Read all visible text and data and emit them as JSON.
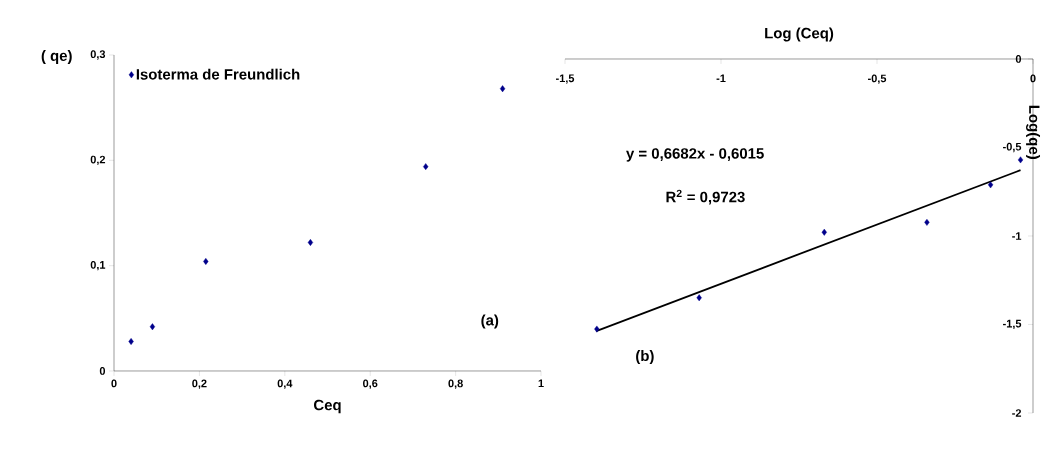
{
  "chart_data": [
    {
      "type": "scatter",
      "xlabel": "Ceq",
      "ylabel": "( qe)",
      "marker": "diamond",
      "legend": "top left",
      "xlim": [
        0,
        1
      ],
      "xticks": [
        0,
        {
          "value": 0.2,
          "label": "0,2"
        },
        {
          "value": 0.4,
          "label": "0,4"
        },
        {
          "value": 0.6,
          "label": "0,6"
        },
        {
          "value": 0.8,
          "label": "0,8"
        },
        1
      ],
      "ylim": [
        0,
        0.3
      ],
      "yticks": [
        0,
        {
          "value": 0.1,
          "label": "0,1"
        },
        {
          "value": 0.2,
          "label": "0,2"
        },
        {
          "value": 0.3,
          "label": "0,3"
        }
      ],
      "series": [
        {
          "name": "Isoterma de Freundlich",
          "color": "#00008b",
          "x": [
            0.04,
            0.09,
            0.215,
            0.46,
            0.73,
            0.91
          ],
          "values": [
            0.028,
            0.042,
            0.104,
            0.122,
            0.194,
            0.268
          ]
        }
      ],
      "annotations": [
        "(a)"
      ]
    },
    {
      "type": "scatter",
      "xlabel": "Log (Ceq)",
      "ylabel": "Log(qe)",
      "marker": "diamond",
      "xlim": [
        -1.5,
        0
      ],
      "xticks": [
        {
          "value": -1.5,
          "label": "-1,5"
        },
        -1,
        {
          "value": -0.5,
          "label": "-0,5"
        },
        0
      ],
      "ylim": [
        -2,
        0
      ],
      "yticks": [
        -2,
        {
          "value": -1.5,
          "label": "-1,5"
        },
        -1,
        {
          "value": -0.5,
          "label": "-0,5"
        },
        0
      ],
      "series": [
        {
          "color": "#00008b",
          "x": [
            -1.398,
            -1.07,
            -0.669,
            -0.34,
            -0.136,
            -0.04
          ],
          "values": [
            -1.526,
            -1.349,
            -0.979,
            -0.923,
            -0.711,
            -0.57
          ]
        },
        {
          "type": "line",
          "color": "#000000",
          "marker": "none",
          "x": [
            -1.4,
            -0.04
          ],
          "values": [
            -1.537,
            -0.628
          ]
        }
      ],
      "annotations": [
        "y = 0,6682x - 0,6015",
        "R$^{2}$ = 0,9723",
        "(b)"
      ]
    }
  ]
}
